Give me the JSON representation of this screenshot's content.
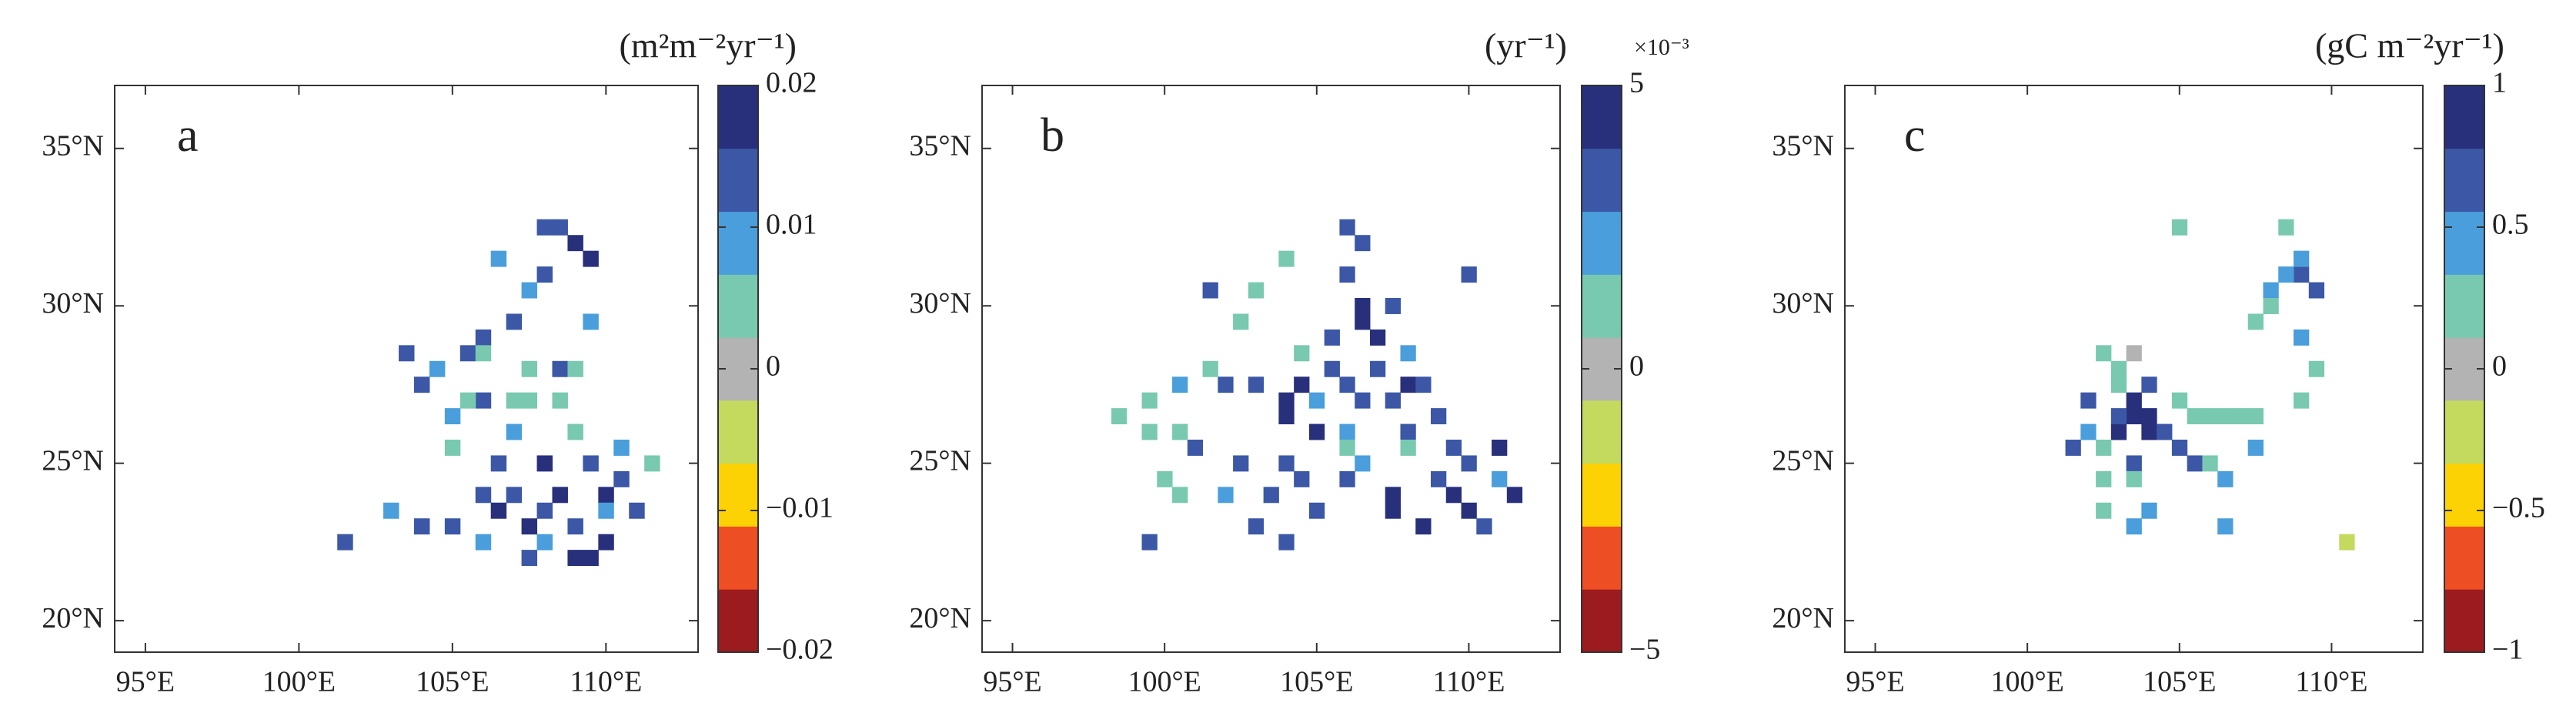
{
  "chart_data": [
    {
      "type": "heatmap",
      "label": "a",
      "colorbar_title": "(m²m⁻²yr⁻¹)",
      "xlim": [
        94,
        113
      ],
      "ylim": [
        19,
        37
      ],
      "xticks": [
        {
          "value": 95,
          "label": "95°E"
        },
        {
          "value": 100,
          "label": "100°E"
        },
        {
          "value": 105,
          "label": "105°E"
        },
        {
          "value": 110,
          "label": "110°E"
        }
      ],
      "yticks": [
        {
          "value": 20,
          "label": "20°N"
        },
        {
          "value": 25,
          "label": "25°N"
        },
        {
          "value": 30,
          "label": "30°N"
        },
        {
          "value": 35,
          "label": "35°N"
        }
      ],
      "clim": [
        -0.02,
        0.02
      ],
      "cticks": [
        {
          "value": -0.02,
          "label": "−0.02"
        },
        {
          "value": -0.01,
          "label": "−0.01"
        },
        0,
        0.01,
        0.02
      ],
      "colors": [
        "#9b1b1e",
        "#ee4e23",
        "#fdd205",
        "#c3da5f",
        "#b3b3b3",
        "#78c9b0",
        "#4a9edb",
        "#3b57a6",
        "#28307b"
      ],
      "cells": {
        "x": [
          109,
          109.5,
          108.5,
          107.5,
          109,
          109.5,
          110,
          106.5,
          108,
          110,
          108,
          108.5,
          108,
          105.5,
          106,
          107,
          104,
          103.5,
          106,
          107,
          108,
          109,
          110.5,
          111,
          106.5,
          109.5,
          105,
          104,
          107.5,
          101.5,
          106,
          108.5,
          106.5,
          107.5,
          104.5,
          105,
          107,
          110,
          108,
          110.5,
          106,
          103,
          109.5,
          106,
          107.5,
          109,
          105.5,
          107.5,
          108.5,
          107,
          111.5,
          109,
          105
        ],
        "y": [
          32,
          31.5,
          24,
          23,
          22,
          22,
          22.5,
          23.5,
          25,
          24,
          32.5,
          32.5,
          31,
          28.5,
          29,
          29.5,
          27.5,
          28.5,
          24,
          24,
          23.5,
          23,
          24.5,
          23.5,
          25,
          25,
          23,
          23,
          22,
          22.5,
          27,
          28,
          31.5,
          30.5,
          28,
          26.5,
          26,
          23.5,
          22.5,
          25.5,
          22.5,
          23.5,
          29.5,
          28.5,
          28,
          28,
          27,
          27,
          27,
          27,
          25,
          26,
          25.5
        ],
        "values": [
          0.018,
          0.018,
          0.018,
          0.018,
          0.018,
          0.018,
          0.018,
          0.018,
          0.018,
          0.018,
          0.013,
          0.013,
          0.013,
          0.013,
          0.013,
          0.013,
          0.013,
          0.013,
          0.013,
          0.013,
          0.013,
          0.013,
          0.013,
          0.013,
          0.013,
          0.013,
          0.013,
          0.013,
          0.013,
          0.013,
          0.013,
          0.013,
          0.009,
          0.009,
          0.009,
          0.009,
          0.009,
          0.009,
          0.009,
          0.009,
          0.009,
          0.009,
          0.009,
          0.004,
          0.004,
          0.004,
          0.004,
          0.004,
          0.004,
          0.004,
          0.004,
          0.004,
          0.004
        ]
      }
    },
    {
      "type": "heatmap",
      "label": "b",
      "colorbar_title": "(yr⁻¹)",
      "colorbar_exponent": "×10⁻³",
      "xlim": [
        94,
        113
      ],
      "ylim": [
        19,
        37
      ],
      "xticks": [
        {
          "value": 95,
          "label": "95°E"
        },
        {
          "value": 100,
          "label": "100°E"
        },
        {
          "value": 105,
          "label": "105°E"
        },
        {
          "value": 110,
          "label": "110°E"
        }
      ],
      "yticks": [
        {
          "value": 20,
          "label": "20°N"
        },
        {
          "value": 25,
          "label": "25°N"
        },
        {
          "value": 30,
          "label": "30°N"
        },
        {
          "value": 35,
          "label": "35°N"
        }
      ],
      "clim": [
        -5,
        5
      ],
      "cticks": [
        {
          "value": -5,
          "label": "−5"
        },
        0,
        5
      ],
      "colors": [
        "#9b1b1e",
        "#ee4e23",
        "#fdd205",
        "#c3da5f",
        "#b3b3b3",
        "#78c9b0",
        "#4a9edb",
        "#3b57a6",
        "#28307b"
      ],
      "cells": {
        "x": [
          106.5,
          106.5,
          107,
          104,
          104,
          104.5,
          107.5,
          107.5,
          108.5,
          109.5,
          110,
          111.5,
          111,
          105,
          108,
          106,
          106.5,
          106,
          107.5,
          101.5,
          105.5,
          107,
          105.5,
          106,
          106.5,
          107.5,
          108.5,
          109,
          108,
          110,
          104.5,
          103.5,
          103,
          104,
          105,
          106,
          109,
          109.5,
          102,
          103,
          104,
          110.5,
          101,
          102.5,
          99.5,
          110,
          105,
          106,
          108,
          102,
          106.5,
          111,
          100.5,
          100,
          99.5,
          98.5,
          100.5,
          99.5,
          103,
          104,
          101.5,
          102.5,
          106,
          108,
          104.5,
          100.5
        ],
        "y": [
          29.5,
          30,
          29,
          27,
          26.5,
          27.5,
          24,
          23.5,
          23,
          24,
          23.5,
          24,
          25.5,
          26,
          27.5,
          32.5,
          32,
          31,
          30,
          30.5,
          29,
          28,
          28,
          27.5,
          27,
          27,
          27.5,
          26.5,
          26,
          25,
          24.5,
          24,
          23,
          22.5,
          23.5,
          24.5,
          24.5,
          25.5,
          27.5,
          27.5,
          25,
          23,
          25.5,
          25,
          22.5,
          31,
          27,
          26,
          28.5,
          24,
          25,
          24.5,
          27.5,
          24.5,
          26,
          26.5,
          24,
          27,
          30.5,
          31.5,
          28,
          29.5,
          25.5,
          25.5,
          28.5,
          26
        ],
        "values": [
          4.4,
          4.4,
          4.4,
          4.4,
          4.4,
          4.4,
          4.4,
          4.4,
          4.4,
          4.4,
          4.4,
          4.4,
          4.4,
          4.4,
          4.4,
          3.3,
          3.3,
          3.3,
          3.3,
          3.3,
          3.3,
          3.3,
          3.3,
          3.3,
          3.3,
          3.3,
          3.3,
          3.3,
          3.3,
          3.3,
          3.3,
          3.3,
          3.3,
          3.3,
          3.3,
          3.3,
          3.3,
          3.3,
          3.3,
          3.3,
          3.3,
          3.3,
          3.3,
          3.3,
          3.3,
          3.3,
          2.2,
          2.2,
          2.2,
          2.2,
          2.2,
          2.2,
          2.2,
          1.1,
          1.1,
          1.1,
          1.1,
          1.1,
          1.1,
          1.1,
          1.1,
          1.1,
          1.1,
          1.1,
          1.1,
          1.1
        ]
      }
    },
    {
      "type": "heatmap",
      "label": "c",
      "colorbar_title": "(gC m⁻²yr⁻¹)",
      "xlim": [
        94,
        113
      ],
      "ylim": [
        19,
        37
      ],
      "xticks": [
        {
          "value": 95,
          "label": "95°E"
        },
        {
          "value": 100,
          "label": "100°E"
        },
        {
          "value": 105,
          "label": "105°E"
        },
        {
          "value": 110,
          "label": "110°E"
        }
      ],
      "yticks": [
        {
          "value": 20,
          "label": "20°N"
        },
        {
          "value": 25,
          "label": "25°N"
        },
        {
          "value": 30,
          "label": "30°N"
        },
        {
          "value": 35,
          "label": "35°N"
        }
      ],
      "clim": [
        -1,
        1
      ],
      "cticks": [
        {
          "value": -1,
          "label": "−1"
        },
        {
          "value": -0.5,
          "label": "−0.5"
        },
        0,
        0.5,
        1
      ],
      "colors": [
        "#9b1b1e",
        "#ee4e23",
        "#fdd205",
        "#c3da5f",
        "#b3b3b3",
        "#78c9b0",
        "#4a9edb",
        "#3b57a6",
        "#28307b"
      ],
      "cells": {
        "x": [
          103.5,
          103.5,
          104,
          104,
          103,
          102,
          104,
          103,
          104.5,
          105,
          105.5,
          109,
          109.5,
          101.5,
          103.5,
          109,
          108.5,
          108,
          106.5,
          103.5,
          104,
          106.5,
          109,
          102,
          107.5,
          102.5,
          103,
          103,
          105,
          105.5,
          106,
          106.5,
          107,
          107.5,
          102.5,
          102.5,
          103.5,
          106,
          109.5,
          108,
          107.5,
          105,
          108.5,
          109,
          102.5,
          103.5,
          110.5
        ],
        "y": [
          27,
          26.5,
          26,
          26.5,
          26,
          27,
          27.5,
          26.5,
          26,
          25.5,
          25,
          31,
          30.5,
          25.5,
          25,
          31.5,
          31,
          30.5,
          24.5,
          23,
          23.5,
          23,
          29,
          26,
          25.5,
          28.5,
          28,
          27.5,
          27,
          26.5,
          26.5,
          26.5,
          26.5,
          26.5,
          25.5,
          24.5,
          24.5,
          25,
          28,
          30,
          29.5,
          32.5,
          32.5,
          27,
          23.5,
          28.5,
          22.5
        ],
        "values": [
          0.9,
          0.9,
          0.9,
          0.9,
          0.9,
          0.67,
          0.67,
          0.67,
          0.67,
          0.67,
          0.67,
          0.67,
          0.67,
          0.67,
          0.67,
          0.44,
          0.44,
          0.44,
          0.44,
          0.44,
          0.44,
          0.44,
          0.44,
          0.44,
          0.44,
          0.22,
          0.22,
          0.22,
          0.22,
          0.22,
          0.22,
          0.22,
          0.22,
          0.22,
          0.22,
          0.22,
          0.22,
          0.22,
          0.22,
          0.22,
          0.22,
          0.22,
          0.22,
          0.22,
          0.22,
          0,
          -0.22
        ]
      }
    }
  ]
}
